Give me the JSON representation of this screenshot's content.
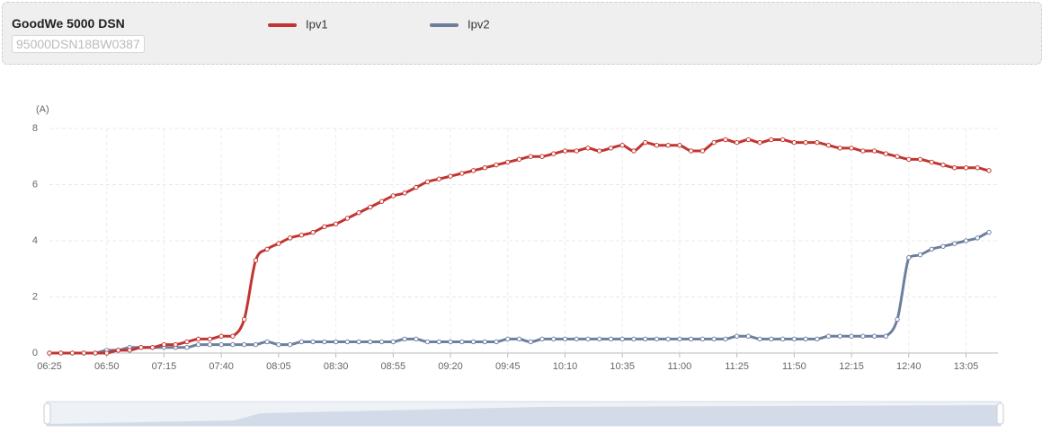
{
  "chart_data": {
    "type": "line",
    "title": "GoodWe 5000 DSN",
    "subtitle": "95000DSN18BW0387",
    "y_axis_label": "(A)",
    "categories": [
      "06:25",
      null,
      null,
      null,
      null,
      "06:50",
      null,
      null,
      null,
      null,
      "07:15",
      null,
      null,
      null,
      null,
      "07:40",
      null,
      null,
      null,
      null,
      "08:05",
      null,
      null,
      null,
      null,
      "08:30",
      null,
      null,
      null,
      null,
      "08:55",
      null,
      null,
      null,
      null,
      "09:20",
      null,
      null,
      null,
      null,
      "09:45",
      null,
      null,
      null,
      null,
      "10:10",
      null,
      null,
      null,
      null,
      "10:35",
      null,
      null,
      null,
      null,
      "11:00",
      null,
      null,
      null,
      null,
      "11:25",
      null,
      null,
      null,
      null,
      "11:50",
      null,
      null,
      null,
      null,
      "12:15",
      null,
      null,
      null,
      null,
      "12:40",
      null,
      null,
      null,
      null,
      "13:05",
      null,
      null
    ],
    "series": [
      {
        "name": "Ipv1",
        "color": "#c23531",
        "values": [
          0,
          0,
          0,
          0,
          0,
          0,
          0.1,
          0.1,
          0.2,
          0.2,
          0.3,
          0.3,
          0.4,
          0.5,
          0.5,
          0.6,
          0.6,
          1.2,
          3.3,
          3.7,
          3.9,
          4.1,
          4.2,
          4.3,
          4.5,
          4.6,
          4.8,
          5.0,
          5.2,
          5.4,
          5.6,
          5.7,
          5.9,
          6.1,
          6.2,
          6.3,
          6.4,
          6.5,
          6.6,
          6.7,
          6.8,
          6.9,
          7.0,
          7.0,
          7.1,
          7.2,
          7.2,
          7.3,
          7.2,
          7.3,
          7.4,
          7.2,
          7.5,
          7.4,
          7.4,
          7.4,
          7.2,
          7.2,
          7.5,
          7.6,
          7.5,
          7.6,
          7.5,
          7.6,
          7.6,
          7.5,
          7.5,
          7.5,
          7.4,
          7.3,
          7.3,
          7.2,
          7.2,
          7.1,
          7.0,
          6.9,
          6.9,
          6.8,
          6.7,
          6.6,
          6.6,
          6.6,
          6.5
        ]
      },
      {
        "name": "Ipv2",
        "color": "#6e7f9e",
        "values": [
          0,
          0,
          0,
          0,
          0,
          0.1,
          0.1,
          0.2,
          0.2,
          0.2,
          0.2,
          0.2,
          0.2,
          0.3,
          0.3,
          0.3,
          0.3,
          0.3,
          0.3,
          0.4,
          0.3,
          0.3,
          0.4,
          0.4,
          0.4,
          0.4,
          0.4,
          0.4,
          0.4,
          0.4,
          0.4,
          0.5,
          0.5,
          0.4,
          0.4,
          0.4,
          0.4,
          0.4,
          0.4,
          0.4,
          0.5,
          0.5,
          0.4,
          0.5,
          0.5,
          0.5,
          0.5,
          0.5,
          0.5,
          0.5,
          0.5,
          0.5,
          0.5,
          0.5,
          0.5,
          0.5,
          0.5,
          0.5,
          0.5,
          0.5,
          0.6,
          0.6,
          0.5,
          0.5,
          0.5,
          0.5,
          0.5,
          0.5,
          0.6,
          0.6,
          0.6,
          0.6,
          0.6,
          0.6,
          1.2,
          3.4,
          3.5,
          3.7,
          3.8,
          3.9,
          4.0,
          4.1,
          4.3
        ]
      }
    ],
    "ylim": [
      0,
      8
    ],
    "yticks": [
      0,
      2,
      4,
      6,
      8
    ],
    "grid": true,
    "legend": "top"
  }
}
